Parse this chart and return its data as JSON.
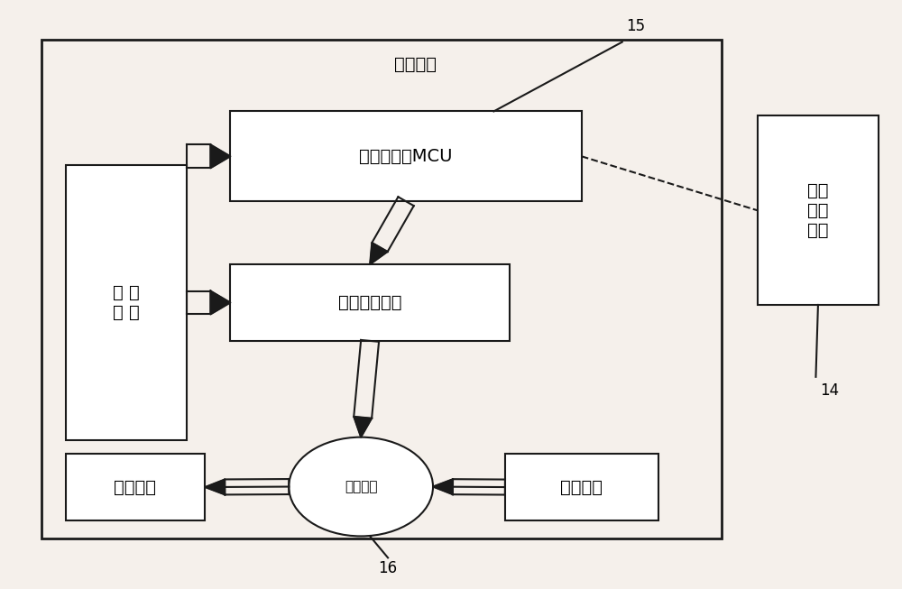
{
  "bg_color": "#f5f0eb",
  "fig_width": 10.0,
  "fig_height": 6.53,
  "main_panel_label": "开关面板",
  "label_15": "15",
  "label_16": "16",
  "label_14": "14",
  "box_power": "电 源\n模 块",
  "box_mcu": "基于蓝牙的MCU",
  "box_motor_driver": "电机驱动模块",
  "box_transmission": "传动机构",
  "box_stepper": "步进电机",
  "box_manual": "手动开关",
  "box_bluetooth": "蓝牙\n控制\n终端",
  "font_size_main": 14,
  "font_size_label": 11,
  "font_size_number": 12,
  "line_color": "#1a1a1a",
  "lw_main": 2.0,
  "lw_inner": 1.5
}
